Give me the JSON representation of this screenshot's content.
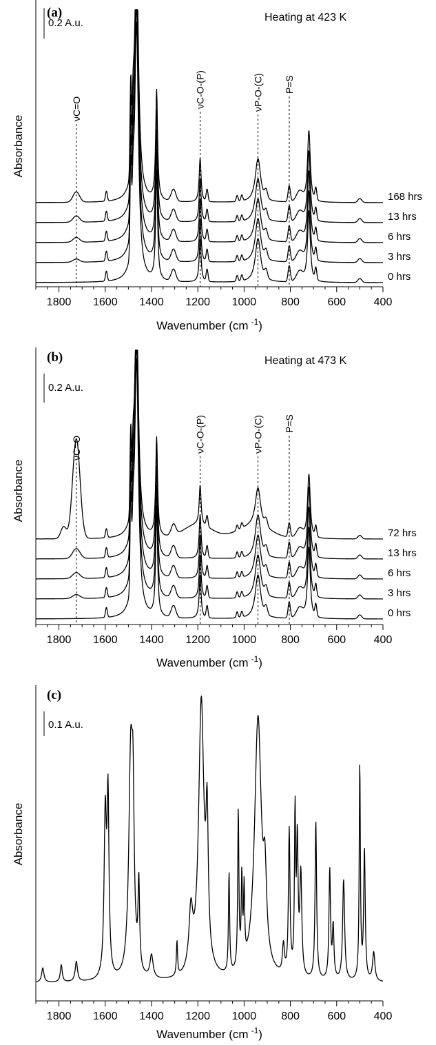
{
  "chart_data": [
    {
      "type": "line",
      "panel_label": "(a)",
      "title": "Heating at 423 K",
      "xlabel": "Wavenumber (cm -1)",
      "xlabel_main": "Wavenumber (cm",
      "xlabel_sup": "-1",
      "xlabel_close": ")",
      "ylabel": "Absorbance",
      "xlim": [
        1900,
        400
      ],
      "x_reversed": true,
      "x_ticks": [
        1800,
        1600,
        1400,
        1200,
        1000,
        800,
        600,
        400
      ],
      "scale_bar": "0.2 A.u.",
      "scale_bar_value": 0.2,
      "peak_markers": [
        {
          "label": "νC=O",
          "x": 1725
        },
        {
          "label": "νC-O-(P)",
          "x": 1190
        },
        {
          "label": "νP-O-(C)",
          "x": 940
        },
        {
          "label": "P=S",
          "x": 805
        }
      ],
      "series": [
        {
          "name": "0 hrs",
          "offset": 0.0,
          "tag": "a"
        },
        {
          "name": "3 hrs",
          "offset": 0.1,
          "tag": "a"
        },
        {
          "name": "6 hrs",
          "offset": 0.2,
          "tag": "a"
        },
        {
          "name": "13 hrs",
          "offset": 0.3,
          "tag": "a"
        },
        {
          "name": "168 hrs",
          "offset": 0.4,
          "tag": "a"
        }
      ]
    },
    {
      "type": "line",
      "panel_label": "(b)",
      "title": "Heating at 473 K",
      "xlabel": "Wavenumber (cm -1)",
      "xlabel_main": "Wavenumber (cm",
      "xlabel_sup": "-1",
      "xlabel_close": ")",
      "ylabel": "Absorbance",
      "xlim": [
        1900,
        400
      ],
      "x_reversed": true,
      "x_ticks": [
        1800,
        1600,
        1400,
        1200,
        1000,
        800,
        600,
        400
      ],
      "scale_bar": "0.2 A.u.",
      "scale_bar_value": 0.2,
      "peak_markers": [
        {
          "label": "νC=O",
          "x": 1725
        },
        {
          "label": "νC-O-(P)",
          "x": 1190
        },
        {
          "label": "νP-O-(C)",
          "x": 940
        },
        {
          "label": "P=S",
          "x": 805
        }
      ],
      "series": [
        {
          "name": "0 hrs",
          "offset": 0.0,
          "tag": "b"
        },
        {
          "name": "3 hrs",
          "offset": 0.1,
          "tag": "b"
        },
        {
          "name": "6 hrs",
          "offset": 0.2,
          "tag": "b"
        },
        {
          "name": "13 hrs",
          "offset": 0.3,
          "tag": "b"
        },
        {
          "name": "72 hrs",
          "offset": 0.4,
          "tag": "b"
        }
      ]
    },
    {
      "type": "line",
      "panel_label": "(c)",
      "title": "",
      "xlabel": "Wavenumber (cm -1)",
      "xlabel_main": "Wavenumber (cm",
      "xlabel_sup": "-1",
      "xlabel_close": ")",
      "ylabel": "Absorbance",
      "xlim": [
        1900,
        400
      ],
      "x_reversed": true,
      "x_ticks": [
        1800,
        1600,
        1400,
        1200,
        1000,
        800,
        600,
        400
      ],
      "scale_bar": "0.1 A.u.",
      "scale_bar_value": 0.1,
      "peak_markers": [],
      "series": [
        {
          "offset": 0.0,
          "tag": "c"
        }
      ]
    }
  ]
}
